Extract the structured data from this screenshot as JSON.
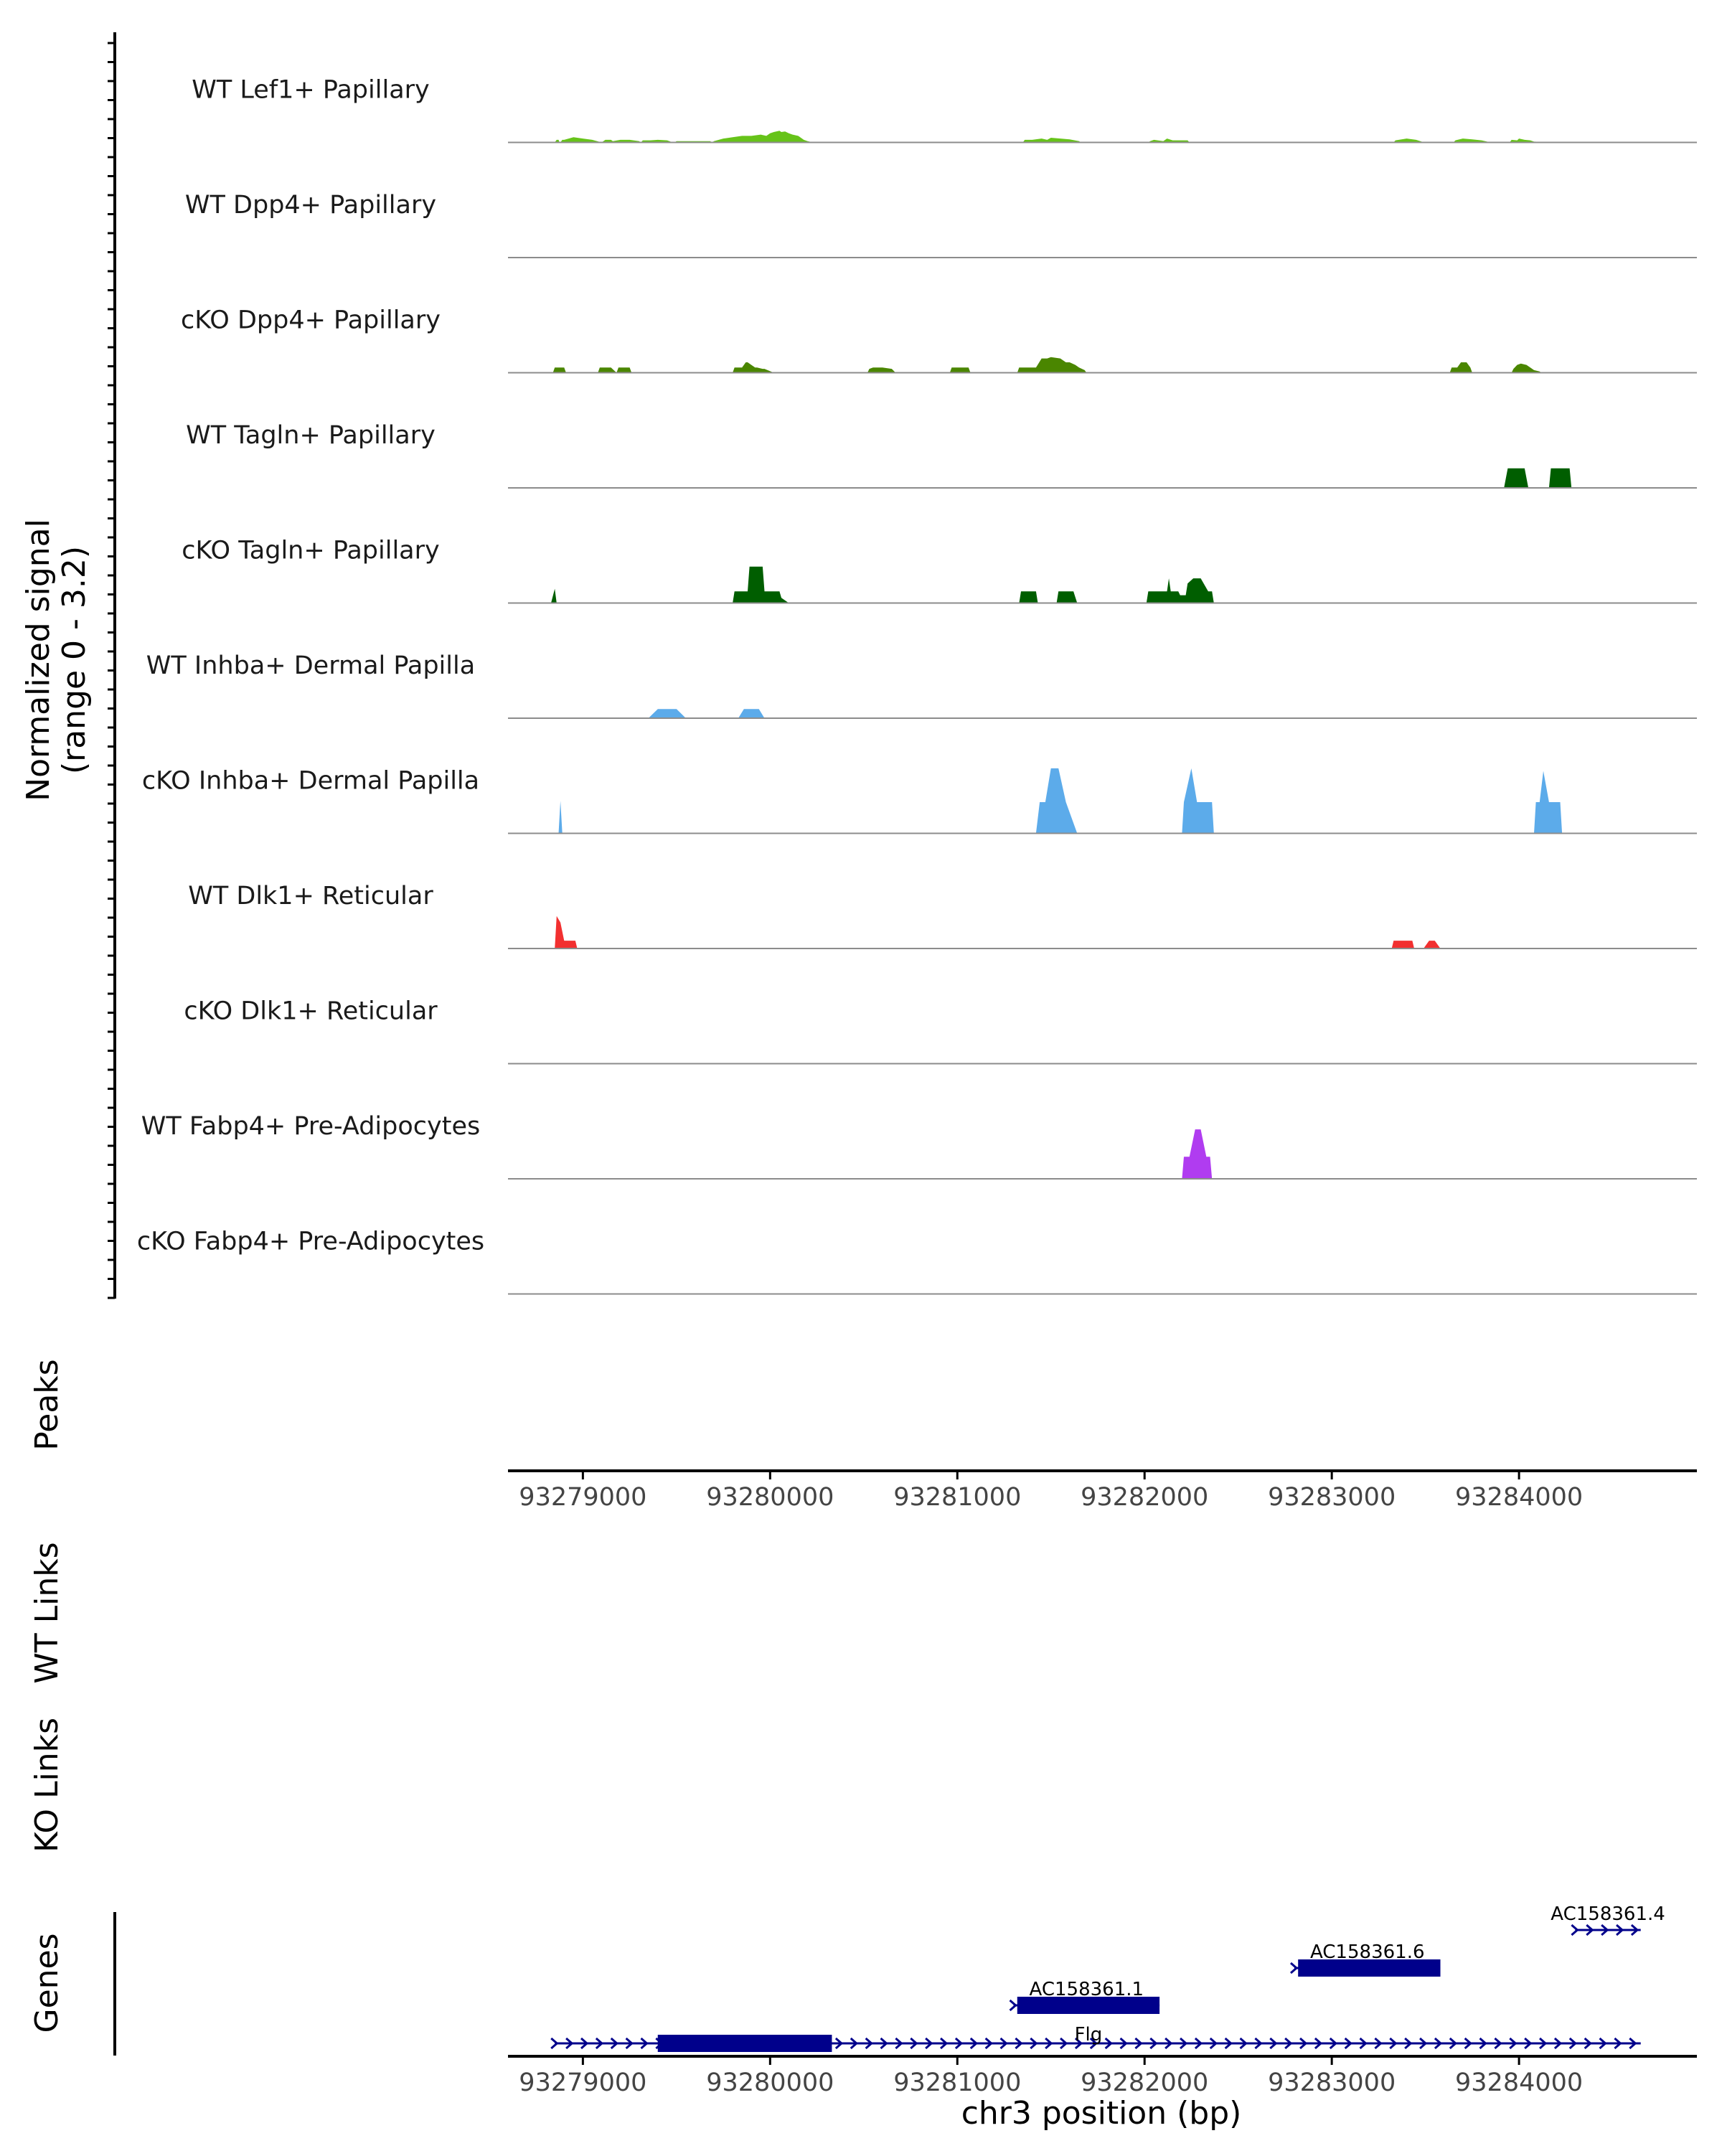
{
  "chart_data": {
    "type": "area",
    "title": "",
    "ylabel": "Normalized signal\n(range 0 - 3.2)",
    "ylim": [
      0,
      3.2
    ],
    "xlabel": "chr3 position (bp)",
    "xlim": [
      93278600,
      93284950
    ],
    "x_ticks": [
      93279000,
      93280000,
      93281000,
      93282000,
      93283000,
      93284000
    ],
    "x_tick_labels": [
      "93279000",
      "93280000",
      "93281000",
      "93282000",
      "93283000",
      "93284000"
    ],
    "series": [
      {
        "name": "WT Lef1+ Papillary",
        "color": "#66c319",
        "x": [
          93278850,
          93278860,
          93278870,
          93278875,
          93278880,
          93278890,
          93278900,
          93278950,
          93279000,
          93279050,
          93279100,
          93279120,
          93279130,
          93279150,
          93279160,
          93279200,
          93279250,
          93279300,
          93279310,
          93279320,
          93279360,
          93279400,
          93279450,
          93279480,
          93279490,
          93279500,
          93279600,
          93279680,
          93279690,
          93279700,
          93279750,
          93279800,
          93279850,
          93279900,
          93279950,
          93279980,
          93280000,
          93280020,
          93280050,
          93280060,
          93280080,
          93280100,
          93280120,
          93280150,
          93280180,
          93280200,
          93280230,
          93280240,
          93281350,
          93281360,
          93281400,
          93281450,
          93281480,
          93281500,
          93281550,
          93281600,
          93281650,
          93281660,
          93282020,
          93282030,
          93282050,
          93282100,
          93282120,
          93282150,
          93282200,
          93282230,
          93282240,
          93283330,
          93283340,
          93283400,
          93283450,
          93283480,
          93283490,
          93283650,
          93283660,
          93283700,
          93283750,
          93283800,
          93283830,
          93283840,
          93283950,
          93283960,
          93283990,
          93284000,
          93284030,
          93284060,
          93284080,
          93284120,
          93284130
        ],
        "values": [
          0,
          0.1,
          0.1,
          0,
          0,
          0.1,
          0.1,
          0.2,
          0.15,
          0.1,
          0,
          0.1,
          0.1,
          0.1,
          0.05,
          0.1,
          0.1,
          0.05,
          0,
          0.08,
          0.08,
          0.1,
          0.08,
          0,
          0,
          0.05,
          0.05,
          0.05,
          0,
          0.05,
          0.15,
          0.2,
          0.25,
          0.25,
          0.3,
          0.25,
          0.35,
          0.4,
          0.45,
          0.4,
          0.42,
          0.35,
          0.3,
          0.25,
          0.1,
          0.05,
          0,
          0,
          0,
          0.1,
          0.1,
          0.15,
          0.1,
          0.18,
          0.15,
          0.12,
          0.05,
          0,
          0,
          0.05,
          0.1,
          0.05,
          0.15,
          0.08,
          0.08,
          0.08,
          0,
          0,
          0.08,
          0.15,
          0.1,
          0.03,
          0,
          0,
          0.08,
          0.15,
          0.12,
          0.08,
          0.03,
          0,
          0,
          0.1,
          0.08,
          0.15,
          0.1,
          0.08,
          0.03,
          0.02,
          0
        ]
      },
      {
        "name": "WT Dpp4+ Papillary",
        "color": "#5b9e14",
        "x": [
          93278600,
          93284950
        ],
        "values": [
          0,
          0
        ]
      },
      {
        "name": "cKO Dpp4+ Papillary",
        "color": "#4a8600",
        "x": [
          93278840,
          93278850,
          93278900,
          93278910,
          93279080,
          93279090,
          93279150,
          93279180,
          93279190,
          93279250,
          93279260,
          93279350,
          93279360,
          93279800,
          93279810,
          93279850,
          93279870,
          93279880,
          93279920,
          93279930,
          93279960,
          93279970,
          93280020,
          93280030,
          93280050,
          93280060,
          93280520,
          93280530,
          93280550,
          93280600,
          93280650,
          93280670,
          93280680,
          93280960,
          93280970,
          93281060,
          93281070,
          93281320,
          93281330,
          93281420,
          93281450,
          93281480,
          93281500,
          93281550,
          93281580,
          93281600,
          93281630,
          93281650,
          93281680,
          93281690,
          93283630,
          93283640,
          93283670,
          93283690,
          93283720,
          93283740,
          93283750,
          93283960,
          93283970,
          93283990,
          93284010,
          93284040,
          93284060,
          93284080,
          93284110,
          93284120
        ],
        "values": [
          0,
          0.2,
          0.2,
          0,
          0,
          0.2,
          0.2,
          0,
          0.2,
          0.2,
          0,
          0,
          0,
          0,
          0.2,
          0.2,
          0.4,
          0.4,
          0.2,
          0.2,
          0.15,
          0.15,
          0,
          0,
          0,
          0,
          0,
          0.15,
          0.2,
          0.2,
          0.15,
          0,
          0,
          0,
          0.2,
          0.2,
          0,
          0,
          0.2,
          0.2,
          0.55,
          0.55,
          0.6,
          0.55,
          0.4,
          0.4,
          0.3,
          0.2,
          0.1,
          0,
          0,
          0.2,
          0.2,
          0.4,
          0.4,
          0.2,
          0,
          0,
          0.15,
          0.3,
          0.35,
          0.3,
          0.2,
          0.1,
          0.05,
          0
        ]
      },
      {
        "name": "WT Tagln+ Papillary",
        "color": "#005e00",
        "x": [
          93283920,
          93283940,
          93284030,
          93284050,
          93284160,
          93284170,
          93284270,
          93284280
        ],
        "values": [
          0,
          0.75,
          0.75,
          0,
          0,
          0.75,
          0.75,
          0
        ]
      },
      {
        "name": "cKO Tagln+ Papillary",
        "color": "#005e00",
        "x": [
          93278830,
          93278850,
          93278860,
          93279800,
          93279810,
          93279880,
          93279890,
          93279960,
          93279970,
          93280050,
          93280060,
          93280100,
          93281330,
          93281340,
          93281420,
          93281430,
          93281530,
          93281540,
          93281620,
          93281640,
          93282010,
          93282020,
          93282120,
          93282130,
          93282140,
          93282150,
          93282180,
          93282190,
          93282220,
          93282230,
          93282260,
          93282300,
          93282340,
          93282360,
          93282370
        ],
        "values": [
          0,
          0.55,
          0,
          0,
          0.45,
          0.45,
          1.4,
          1.4,
          0.45,
          0.45,
          0.2,
          0,
          0,
          0.45,
          0.45,
          0,
          0,
          0.45,
          0.45,
          0,
          0,
          0.45,
          0.45,
          0.95,
          0.45,
          0.45,
          0.45,
          0.3,
          0.3,
          0.75,
          0.95,
          0.95,
          0.45,
          0.45,
          0
        ]
      },
      {
        "name": "WT Inhba+ Dermal Papilla",
        "color": "#5cabea",
        "x": [
          93279350,
          93279400,
          93279500,
          93279550,
          93279830,
          93279860,
          93279940,
          93279970
        ],
        "values": [
          0,
          0.35,
          0.35,
          0,
          0,
          0.35,
          0.35,
          0
        ]
      },
      {
        "name": "cKO Inhba+ Dermal Papilla",
        "color": "#5cabea",
        "x": [
          93278870,
          93278880,
          93278890,
          93281420,
          93281440,
          93281470,
          93281500,
          93281540,
          93281580,
          93281640,
          93282200,
          93282210,
          93282250,
          93282280,
          93282310,
          93282360,
          93282370,
          93284080,
          93284090,
          93284110,
          93284130,
          93284160,
          93284220,
          93284230
        ],
        "values": [
          0,
          1.25,
          0,
          0,
          1.2,
          1.2,
          2.5,
          2.5,
          1.2,
          0,
          0,
          1.2,
          2.5,
          1.2,
          1.2,
          1.2,
          0,
          0,
          1.2,
          1.2,
          2.4,
          1.2,
          1.2,
          0
        ]
      },
      {
        "name": "WT Dlk1+ Reticular",
        "color": "#f23030",
        "x": [
          93278850,
          93278860,
          93278880,
          93278900,
          93278910,
          93278960,
          93278970,
          93283320,
          93283330,
          93283430,
          93283440,
          93283490,
          93283520,
          93283550,
          93283580,
          93283590
        ],
        "values": [
          0,
          1.25,
          1,
          0.3,
          0.3,
          0.3,
          0,
          0,
          0.3,
          0.3,
          0,
          0,
          0.3,
          0.3,
          0,
          0
        ]
      },
      {
        "name": "cKO Dlk1+ Reticular",
        "color": "#f23030",
        "x": [
          93278600,
          93284950
        ],
        "values": [
          0,
          0
        ]
      },
      {
        "name": "WT Fabp4+ Pre-Adipocytes",
        "color": "#b03cf0",
        "x": [
          93282200,
          93282210,
          93282240,
          93282270,
          93282300,
          93282330,
          93282350,
          93282360
        ],
        "values": [
          0,
          0.85,
          0.85,
          1.9,
          1.9,
          0.85,
          0.85,
          0
        ]
      },
      {
        "name": "cKO Fabp4+ Pre-Adipocytes",
        "color": "#b03cf0",
        "x": [
          93278600,
          93284950
        ],
        "values": [
          0,
          0
        ]
      }
    ],
    "track_panels": [
      "Peaks",
      "WT Links",
      "KO Links",
      "Genes"
    ],
    "genes": [
      {
        "name": "Flg",
        "start": 93278850,
        "end": 93284650,
        "thick_start": 93279400,
        "thick_end": 93280330,
        "row": 0
      },
      {
        "name": "AC158361.1",
        "start": 93281300,
        "end": 93282080,
        "thick_start": 93281320,
        "thick_end": 93282080,
        "row": 1
      },
      {
        "name": "AC158361.6",
        "start": 93282800,
        "end": 93283580,
        "thick_start": 93282820,
        "thick_end": 93283580,
        "row": 2
      },
      {
        "name": "AC158361.4",
        "start": 93284300,
        "end": 93284650,
        "thick_start": null,
        "thick_end": null,
        "row": 3
      }
    ],
    "colors": {
      "axis": "#000000",
      "baseline": "#8c8c8c",
      "gene": "#00008b"
    }
  }
}
